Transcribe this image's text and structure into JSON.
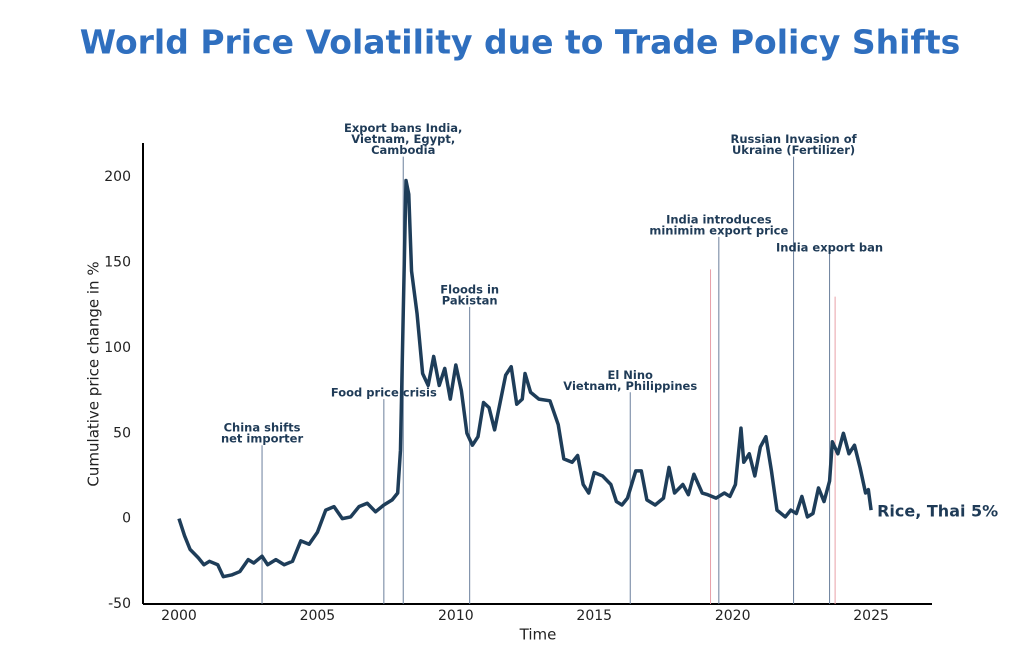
{
  "chart_data": {
    "type": "line",
    "title": "World Price Volatility due to Trade Policy Shifts",
    "x_label": "Time",
    "y_label": "Cumulative price change in %",
    "xlim": [
      1998.7,
      2027.2
    ],
    "ylim": [
      -50,
      220
    ],
    "xticks": [
      2000,
      2005,
      2010,
      2015,
      2020,
      2025
    ],
    "yticks": [
      -50,
      0,
      50,
      100,
      150,
      200
    ],
    "grid": false,
    "series": [
      {
        "name": "Rice, Thai 5%",
        "color": "#1e3d59",
        "x": [
          2000.0,
          2000.2,
          2000.4,
          2000.7,
          2000.9,
          2001.1,
          2001.4,
          2001.6,
          2001.9,
          2002.2,
          2002.5,
          2002.7,
          2003.0,
          2003.2,
          2003.5,
          2003.8,
          2004.1,
          2004.4,
          2004.7,
          2005.0,
          2005.3,
          2005.6,
          2005.9,
          2006.2,
          2006.5,
          2006.8,
          2007.1,
          2007.4,
          2007.7,
          2007.9,
          2008.0,
          2008.1,
          2008.2,
          2008.3,
          2008.4,
          2008.6,
          2008.8,
          2009.0,
          2009.2,
          2009.4,
          2009.6,
          2009.8,
          2010.0,
          2010.2,
          2010.4,
          2010.6,
          2010.8,
          2011.0,
          2011.2,
          2011.4,
          2011.6,
          2011.8,
          2012.0,
          2012.2,
          2012.4,
          2012.5,
          2012.7,
          2013.0,
          2013.4,
          2013.7,
          2013.9,
          2014.2,
          2014.4,
          2014.6,
          2014.8,
          2015.0,
          2015.3,
          2015.6,
          2015.8,
          2016.0,
          2016.2,
          2016.5,
          2016.7,
          2016.9,
          2017.2,
          2017.5,
          2017.7,
          2017.9,
          2018.2,
          2018.4,
          2018.6,
          2018.9,
          2019.1,
          2019.4,
          2019.7,
          2019.9,
          2020.1,
          2020.3,
          2020.4,
          2020.6,
          2020.8,
          2021.0,
          2021.2,
          2021.4,
          2021.6,
          2021.9,
          2022.1,
          2022.3,
          2022.5,
          2022.7,
          2022.9,
          2023.1,
          2023.3,
          2023.5,
          2023.6,
          2023.8,
          2024.0,
          2024.2,
          2024.4,
          2024.6,
          2024.8,
          2024.9,
          2025.0
        ],
        "values": [
          0,
          -10,
          -18,
          -23,
          -27,
          -25,
          -27,
          -34,
          -33,
          -31,
          -24,
          -26,
          -22,
          -27,
          -24,
          -27,
          -25,
          -13,
          -15,
          -8,
          5,
          7,
          0,
          1,
          7,
          9,
          4,
          8,
          11,
          15,
          40,
          120,
          198,
          190,
          145,
          120,
          85,
          78,
          95,
          78,
          88,
          70,
          90,
          75,
          50,
          43,
          48,
          68,
          65,
          52,
          68,
          84,
          89,
          67,
          70,
          85,
          74,
          70,
          69,
          55,
          35,
          33,
          37,
          20,
          15,
          27,
          25,
          20,
          10,
          8,
          12,
          28,
          28,
          11,
          8,
          12,
          30,
          15,
          20,
          14,
          26,
          15,
          14,
          12,
          15,
          13,
          20,
          53,
          33,
          38,
          25,
          42,
          48,
          28,
          5,
          1,
          5,
          3,
          13,
          1,
          3,
          18,
          10,
          22,
          45,
          38,
          50,
          38,
          43,
          30,
          15,
          17,
          5
        ]
      }
    ],
    "annotation_color": "#6b7f9c",
    "annotations": [
      {
        "x": 2003.0,
        "top": 43,
        "lines": [
          "China shifts",
          "net importer"
        ]
      },
      {
        "x": 2007.4,
        "top": 70,
        "lines": [
          "Food price crisis"
        ]
      },
      {
        "x": 2008.1,
        "top": 212,
        "lines": [
          "Export bans India,",
          "Vietnam, Egypt,",
          "Cambodia"
        ]
      },
      {
        "x": 2010.5,
        "top": 124,
        "lines": [
          "Floods in",
          "Pakistan"
        ]
      },
      {
        "x": 2016.3,
        "top": 74,
        "lines": [
          "El Nino",
          "Vietnam, Philippines"
        ]
      },
      {
        "x": 2019.5,
        "top": 165,
        "lines": [
          "India introduces",
          "minimim export price"
        ]
      },
      {
        "x": 2022.2,
        "top": 212,
        "lines": [
          "Russian Invasion of",
          "Ukraine (Fertilizer)"
        ]
      },
      {
        "x": 2023.5,
        "top": 155,
        "lines": [
          "India export ban"
        ]
      }
    ],
    "marker_color": "#e8a0a8",
    "markers": [
      {
        "x": 2019.2,
        "top": 146
      },
      {
        "x": 2023.7,
        "top": 130
      }
    ]
  }
}
